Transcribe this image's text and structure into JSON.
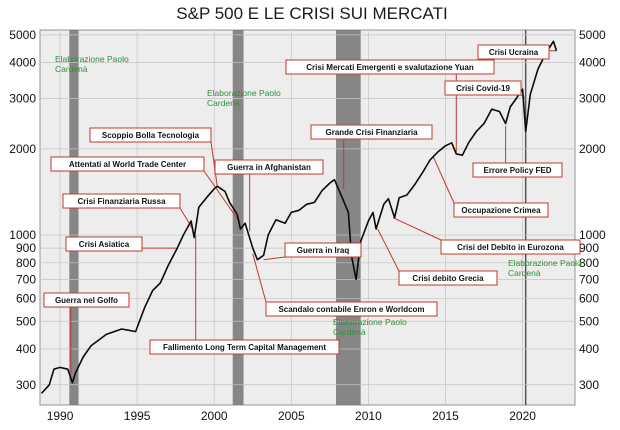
{
  "chart_data": {
    "type": "line",
    "title": "S&P 500 E LE CRISI SUI MERCATI",
    "xlabel": "",
    "ylabel": "",
    "y_scale": "log",
    "xlim": [
      1988.7,
      2023.4
    ],
    "ylim": [
      255,
      5200
    ],
    "grid": true,
    "legend": "none",
    "x_ticks": [
      1990,
      1995,
      2000,
      2005,
      2010,
      2015,
      2020
    ],
    "y_ticks": [
      300,
      400,
      500,
      600,
      700,
      800,
      900,
      1000,
      2000,
      3000,
      4000,
      5000
    ],
    "series": [
      {
        "x": [
          1988.8,
          1989.3,
          1989.6,
          1990.0,
          1990.5,
          1990.8,
          1991.0,
          1991.5,
          1992.0,
          1993.0,
          1994.0,
          1994.9,
          1995.5,
          1996.0,
          1996.5,
          1997.0,
          1997.6,
          1998.0,
          1998.5,
          1998.7,
          1999.0,
          1999.5,
          2000.0,
          2000.2,
          2000.7,
          2001.0,
          2001.5,
          2001.7,
          2002.0,
          2002.5,
          2002.8,
          2003.2,
          2003.5,
          2004.0,
          2004.6,
          2005.0,
          2005.5,
          2006.0,
          2006.5,
          2007.0,
          2007.5,
          2007.8,
          2008.3,
          2008.7,
          2008.9,
          2009.2,
          2009.5,
          2010.0,
          2010.3,
          2010.5,
          2011.0,
          2011.3,
          2011.7,
          2012.0,
          2012.5,
          2013.0,
          2013.5,
          2014.0,
          2014.5,
          2015.0,
          2015.4,
          2015.7,
          2016.1,
          2016.5,
          2017.0,
          2017.5,
          2018.0,
          2018.5,
          2018.9,
          2019.2,
          2019.5,
          2020.0,
          2020.2,
          2020.5,
          2021.0,
          2021.5,
          2022.0,
          2022.2
        ],
        "values": [
          280,
          300,
          340,
          345,
          340,
          305,
          330,
          375,
          410,
          450,
          470,
          460,
          560,
          640,
          680,
          780,
          900,
          1000,
          1120,
          980,
          1250,
          1350,
          1450,
          1480,
          1420,
          1300,
          1180,
          1050,
          1100,
          900,
          820,
          850,
          1000,
          1130,
          1100,
          1200,
          1220,
          1280,
          1300,
          1430,
          1520,
          1560,
          1350,
          1200,
          850,
          700,
          950,
          1120,
          1200,
          1050,
          1280,
          1340,
          1150,
          1350,
          1380,
          1500,
          1650,
          1830,
          1950,
          2050,
          2100,
          1920,
          1900,
          2100,
          2300,
          2450,
          2750,
          2700,
          2450,
          2800,
          2950,
          3230,
          2300,
          3100,
          3800,
          4300,
          4750,
          4400
        ]
      }
    ],
    "shaded_periods": [
      [
        1990.6,
        1991.2
      ],
      [
        2001.2,
        2001.9
      ],
      [
        2007.9,
        2009.5
      ]
    ],
    "vertical_lines": [
      2020.2
    ],
    "annotations": [
      {
        "text": "Guerra nel Golfo",
        "x": 1990.7,
        "y": 330
      },
      {
        "text": "Crisi Asiatica",
        "x": 1997.6,
        "y": 900
      },
      {
        "text": "Crisi Finanziaria Russa",
        "x": 1998.6,
        "y": 1050
      },
      {
        "text": "Attentati al World Trade Center",
        "x": 2001.7,
        "y": 1100
      },
      {
        "text": "Scoppio Bolla Tecnologia",
        "x": 2000.2,
        "y": 1480
      },
      {
        "text": "Fallimento Long Term Capital Management",
        "x": 1998.8,
        "y": 1000
      },
      {
        "text": "Guerra in Afghanistan",
        "x": 2002.3,
        "y": 1030
      },
      {
        "text": "Guerra in Iraq",
        "x": 2003.2,
        "y": 820
      },
      {
        "text": "Scandalo contabile Enron e Worldcom",
        "x": 2002.5,
        "y": 860
      },
      {
        "text": "Grande Crisi Finanziaria",
        "x": 2008.4,
        "y": 1450
      },
      {
        "text": "Crisi Mercati Emergenti e svalutazione Yuan",
        "x": 2015.7,
        "y": 1950
      },
      {
        "text": "Crisi debito Grecia",
        "x": 2010.6,
        "y": 1050
      },
      {
        "text": "Crisi del Debito in Eurozona",
        "x": 2011.6,
        "y": 1150
      },
      {
        "text": "Occupazione Crimea",
        "x": 2014.2,
        "y": 1880
      },
      {
        "text": "Errore Policy FED",
        "x": 2018.9,
        "y": 2400
      },
      {
        "text": "Crisi Covid-19",
        "x": 2020.2,
        "y": 3000
      },
      {
        "text": "Crisi Ucraina",
        "x": 2022.2,
        "y": 4400
      }
    ],
    "watermark": {
      "lines": [
        "Elaborazione Paolo",
        "Cardenà"
      ]
    }
  }
}
